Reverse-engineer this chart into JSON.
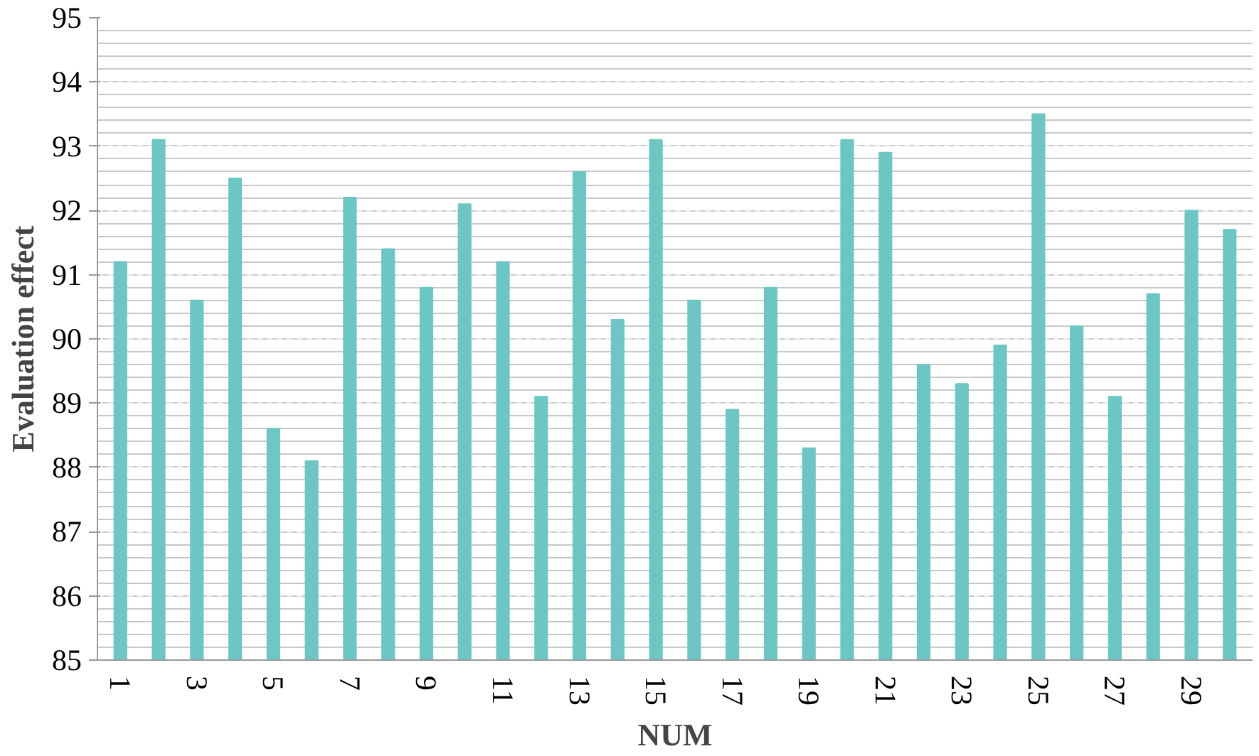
{
  "chart_data": {
    "type": "bar",
    "xlabel": "NUM",
    "ylabel": "Evaluation effect",
    "categories": [
      "1",
      null,
      "3",
      null,
      "5",
      null,
      "7",
      null,
      "9",
      null,
      "11",
      null,
      "13",
      null,
      "15",
      null,
      "17",
      null,
      "19",
      null,
      "21",
      null,
      "23",
      null,
      "25",
      null,
      "27",
      null,
      "29",
      null
    ],
    "series": [
      {
        "color": "#6cc7c4",
        "values": [
          91.2,
          93.1,
          90.6,
          92.5,
          88.6,
          88.1,
          92.2,
          91.4,
          90.8,
          92.1,
          91.2,
          89.1,
          92.6,
          90.3,
          93.1,
          90.6,
          88.9,
          90.8,
          88.3,
          93.1,
          92.9,
          89.6,
          89.3,
          89.9,
          93.5,
          90.2,
          89.1,
          90.7,
          92.0,
          91.7
        ]
      }
    ],
    "ylim": [
      85,
      95
    ],
    "yticks": [
      85,
      86,
      87,
      88,
      89,
      90,
      91,
      92,
      93,
      94,
      95
    ],
    "grid": "y"
  }
}
